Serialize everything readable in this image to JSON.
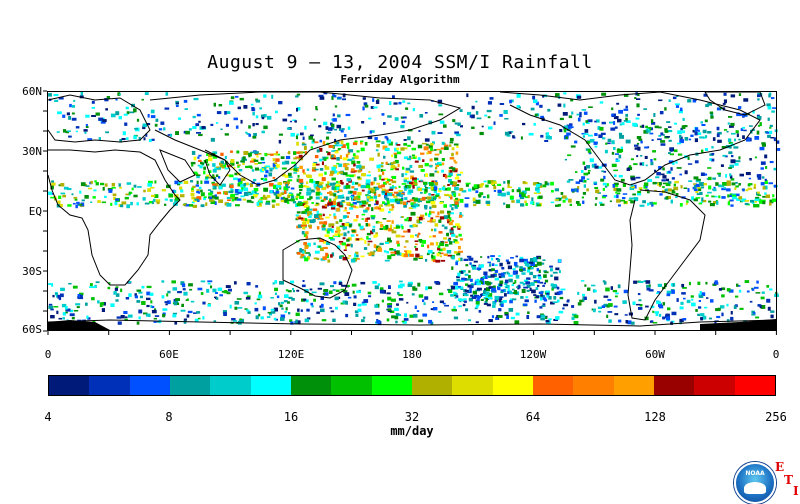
{
  "title": "August 9 – 13, 2004 SSM/I Rainfall",
  "subtitle": "Ferriday Algorithm",
  "lat_labels": [
    "60N",
    "30N",
    "EQ",
    "30S",
    "60S"
  ],
  "lon_labels": [
    "0",
    "60E",
    "120E",
    "180",
    "120W",
    "60W",
    "0"
  ],
  "colorbar": {
    "colors": [
      "#001a7a",
      "#0030b8",
      "#0050ff",
      "#00a0a0",
      "#00cccc",
      "#00ffff",
      "#00900a",
      "#00c000",
      "#00ff00",
      "#b0b000",
      "#dddd00",
      "#ffff00",
      "#ff6000",
      "#ff8000",
      "#ffa000",
      "#990000",
      "#cc0000",
      "#ff0000"
    ],
    "tick_labels": [
      "4",
      "8",
      "16",
      "32",
      "64",
      "128",
      "256"
    ],
    "units": "mm/day"
  },
  "logo": {
    "noaa_text": "NOAA",
    "eti_letters": [
      "E",
      "T",
      "I"
    ]
  }
}
